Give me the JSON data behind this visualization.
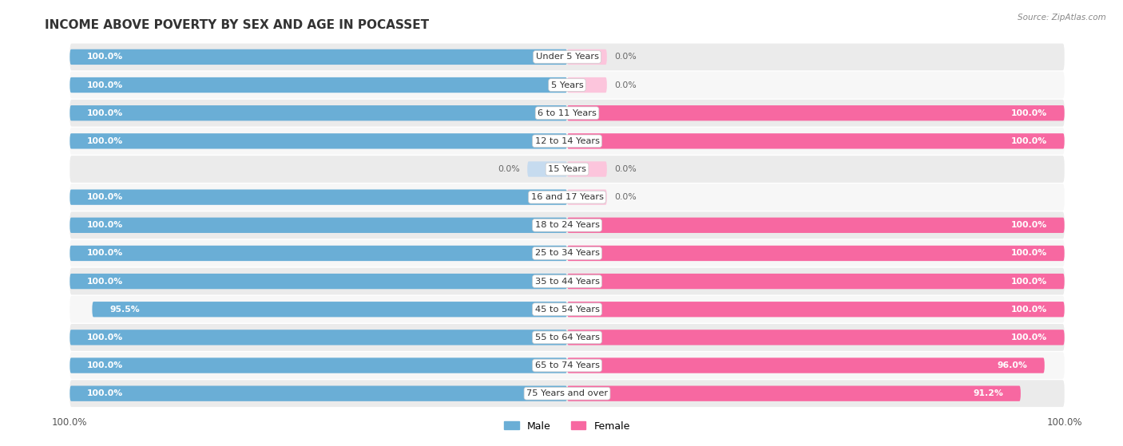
{
  "title": "INCOME ABOVE POVERTY BY SEX AND AGE IN POCASSET",
  "source": "Source: ZipAtlas.com",
  "categories": [
    "Under 5 Years",
    "5 Years",
    "6 to 11 Years",
    "12 to 14 Years",
    "15 Years",
    "16 and 17 Years",
    "18 to 24 Years",
    "25 to 34 Years",
    "35 to 44 Years",
    "45 to 54 Years",
    "55 to 64 Years",
    "65 to 74 Years",
    "75 Years and over"
  ],
  "male": [
    100.0,
    100.0,
    100.0,
    100.0,
    0.0,
    100.0,
    100.0,
    100.0,
    100.0,
    95.5,
    100.0,
    100.0,
    100.0
  ],
  "female": [
    0.0,
    0.0,
    100.0,
    100.0,
    0.0,
    0.0,
    100.0,
    100.0,
    100.0,
    100.0,
    100.0,
    96.0,
    91.2
  ],
  "male_color": "#6aaed6",
  "female_color": "#f768a1",
  "male_color_light": "#c6dbef",
  "female_color_light": "#fcc5dc",
  "bar_height": 0.55,
  "row_bg": "#ebebeb",
  "row_bg2": "#f7f7f7",
  "figsize": [
    14.06,
    5.59
  ],
  "dpi": 100,
  "xlim": 100,
  "stub_size": 8.0
}
